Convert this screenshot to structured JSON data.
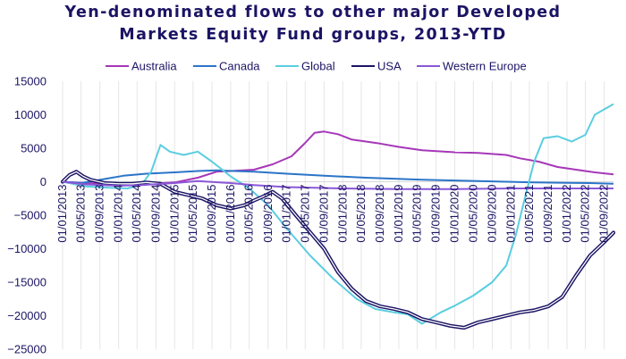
{
  "title_lines": [
    "Yen-denominated flows to other major Developed",
    "Markets Equity Fund groups, 2013-YTD"
  ],
  "chart_data": {
    "type": "line",
    "title": "Yen-denominated flows to other major Developed Markets Equity Fund groups, 2013-YTD",
    "xlabel": "",
    "ylabel": "",
    "ylim": [
      -25000,
      15000
    ],
    "yticks": [
      15000,
      10000,
      5000,
      0,
      -5000,
      -10000,
      -15000,
      -20000,
      -25000
    ],
    "ytick_labels": [
      "15000",
      "10000",
      "5000",
      "0",
      "−5000",
      "−10000",
      "−15000",
      "−20000",
      "−25000"
    ],
    "xticks": [
      "01/01/2013",
      "01/05/2013",
      "01/09/2013",
      "01/01/2014",
      "01/05/2014",
      "01/09/2014",
      "01/01/2015",
      "01/05/2015",
      "01/09/2015",
      "01/01/2016",
      "01/05/2016",
      "01/09/2016",
      "01/01/2017",
      "01/05/2017",
      "01/09/2017",
      "01/01/2018",
      "01/05/2018",
      "01/09/2018",
      "01/01/2019",
      "01/05/2019",
      "01/09/2019",
      "01/01/2020",
      "01/05/2020",
      "01/09/2020",
      "01/01/2021",
      "01/05/2021",
      "01/09/2021",
      "01/01/2022",
      "01/05/2022",
      "01/09/2022"
    ],
    "grid": {
      "vertical": true,
      "horizontal": false
    },
    "legend_position": "top",
    "x_range": [
      "2013-01-01",
      "2022-10-31"
    ],
    "series": [
      {
        "name": "Australia",
        "color": "#a637b8",
        "x": [
          "2013-01-01",
          "2013-06-01",
          "2014-01-01",
          "2014-06-01",
          "2015-01-01",
          "2015-06-01",
          "2015-10-01",
          "2016-01-01",
          "2016-06-01",
          "2016-10-01",
          "2017-02-01",
          "2017-05-01",
          "2017-07-01",
          "2017-09-01",
          "2017-12-01",
          "2018-03-01",
          "2018-06-01",
          "2018-09-01",
          "2019-01-01",
          "2019-06-01",
          "2020-01-01",
          "2020-06-01",
          "2020-12-01",
          "2021-03-01",
          "2021-07-01",
          "2021-11-01",
          "2022-03-01",
          "2022-07-01",
          "2022-10-31"
        ],
        "y": [
          0,
          -200,
          -300,
          -400,
          -100,
          600,
          1500,
          1600,
          1800,
          2600,
          3800,
          5800,
          7300,
          7500,
          7100,
          6300,
          6000,
          5700,
          5200,
          4700,
          4400,
          4300,
          4000,
          3500,
          3000,
          2200,
          1800,
          1400,
          1100
        ]
      },
      {
        "name": "Canada",
        "color": "#2b74c8",
        "x": [
          "2013-01-01",
          "2013-05-01",
          "2013-10-01",
          "2014-02-01",
          "2014-07-01",
          "2015-01-01",
          "2015-06-01",
          "2015-10-01",
          "2016-06-01",
          "2017-01-01",
          "2017-09-01",
          "2018-06-01",
          "2019-06-01",
          "2020-06-01",
          "2021-06-01",
          "2022-06-01",
          "2022-10-31"
        ],
        "y": [
          0,
          -200,
          400,
          900,
          1200,
          1400,
          1600,
          1700,
          1500,
          1200,
          900,
          600,
          300,
          100,
          -100,
          -200,
          -300
        ]
      },
      {
        "name": "Global",
        "color": "#5bcde0",
        "x": [
          "2013-01-01",
          "2013-06-01",
          "2013-11-01",
          "2014-03-01",
          "2014-06-01",
          "2014-08-01",
          "2014-10-01",
          "2014-12-01",
          "2015-03-01",
          "2015-06-01",
          "2015-09-01",
          "2016-01-01",
          "2016-05-01",
          "2016-09-01",
          "2017-01-01",
          "2017-06-01",
          "2017-11-01",
          "2018-04-01",
          "2018-08-01",
          "2018-12-01",
          "2019-03-01",
          "2019-06-01",
          "2019-10-01",
          "2020-01-01",
          "2020-05-01",
          "2020-09-01",
          "2020-12-01",
          "2021-02-01",
          "2021-04-01",
          "2021-06-01",
          "2021-08-01",
          "2021-11-01",
          "2022-02-01",
          "2022-05-01",
          "2022-07-01",
          "2022-10-31"
        ],
        "y": [
          0,
          -700,
          -900,
          -1000,
          -400,
          1500,
          5500,
          4500,
          4000,
          4500,
          3000,
          800,
          -1000,
          -3500,
          -7000,
          -11000,
          -14500,
          -17500,
          -19000,
          -19500,
          -19800,
          -21200,
          -19500,
          -18500,
          -17000,
          -15000,
          -12500,
          -8000,
          -2500,
          3000,
          6500,
          6800,
          6000,
          7000,
          10000,
          11600
        ]
      },
      {
        "name": "USA",
        "color": "#1b1464",
        "x": [
          "2013-01-01",
          "2013-02-15",
          "2013-04-01",
          "2013-05-15",
          "2013-07-01",
          "2013-10-01",
          "2014-01-01",
          "2014-04-01",
          "2014-07-01",
          "2014-10-01",
          "2015-01-01",
          "2015-04-01",
          "2015-07-01",
          "2015-10-01",
          "2016-01-01",
          "2016-04-01",
          "2016-06-01",
          "2016-08-01",
          "2016-10-01",
          "2016-12-01",
          "2017-03-01",
          "2017-06-01",
          "2017-09-01",
          "2017-12-01",
          "2018-03-01",
          "2018-06-01",
          "2018-09-01",
          "2018-12-01",
          "2019-03-01",
          "2019-06-01",
          "2019-09-01",
          "2019-12-01",
          "2020-03-01",
          "2020-06-01",
          "2020-09-01",
          "2020-12-01",
          "2021-03-01",
          "2021-06-01",
          "2021-09-01",
          "2021-12-01",
          "2022-03-01",
          "2022-06-01",
          "2022-09-01",
          "2022-10-31"
        ],
        "y": [
          0,
          1000,
          1500,
          800,
          300,
          -200,
          -300,
          -300,
          -100,
          -300,
          -1500,
          -2000,
          -2500,
          -3500,
          -4000,
          -3500,
          -2800,
          -2200,
          -1500,
          -2500,
          -5000,
          -7500,
          -10000,
          -13500,
          -16000,
          -17800,
          -18600,
          -19000,
          -19500,
          -20500,
          -21000,
          -21500,
          -21800,
          -21000,
          -20500,
          -20000,
          -19500,
          -19200,
          -18600,
          -17200,
          -14000,
          -11000,
          -9000,
          -7600
        ]
      },
      {
        "name": "Western Europe",
        "color": "#8a57d8",
        "x": [
          "2013-01-01",
          "2013-06-01",
          "2014-01-01",
          "2014-06-01",
          "2015-01-01",
          "2015-06-01",
          "2016-01-01",
          "2016-06-01",
          "2017-01-01",
          "2018-01-01",
          "2019-01-01",
          "2020-01-01",
          "2021-01-01",
          "2022-01-01",
          "2022-10-31"
        ],
        "y": [
          0,
          -400,
          -600,
          -500,
          -200,
          100,
          -200,
          -500,
          -800,
          -1000,
          -1100,
          -1100,
          -1000,
          -1000,
          -1000
        ]
      }
    ]
  }
}
